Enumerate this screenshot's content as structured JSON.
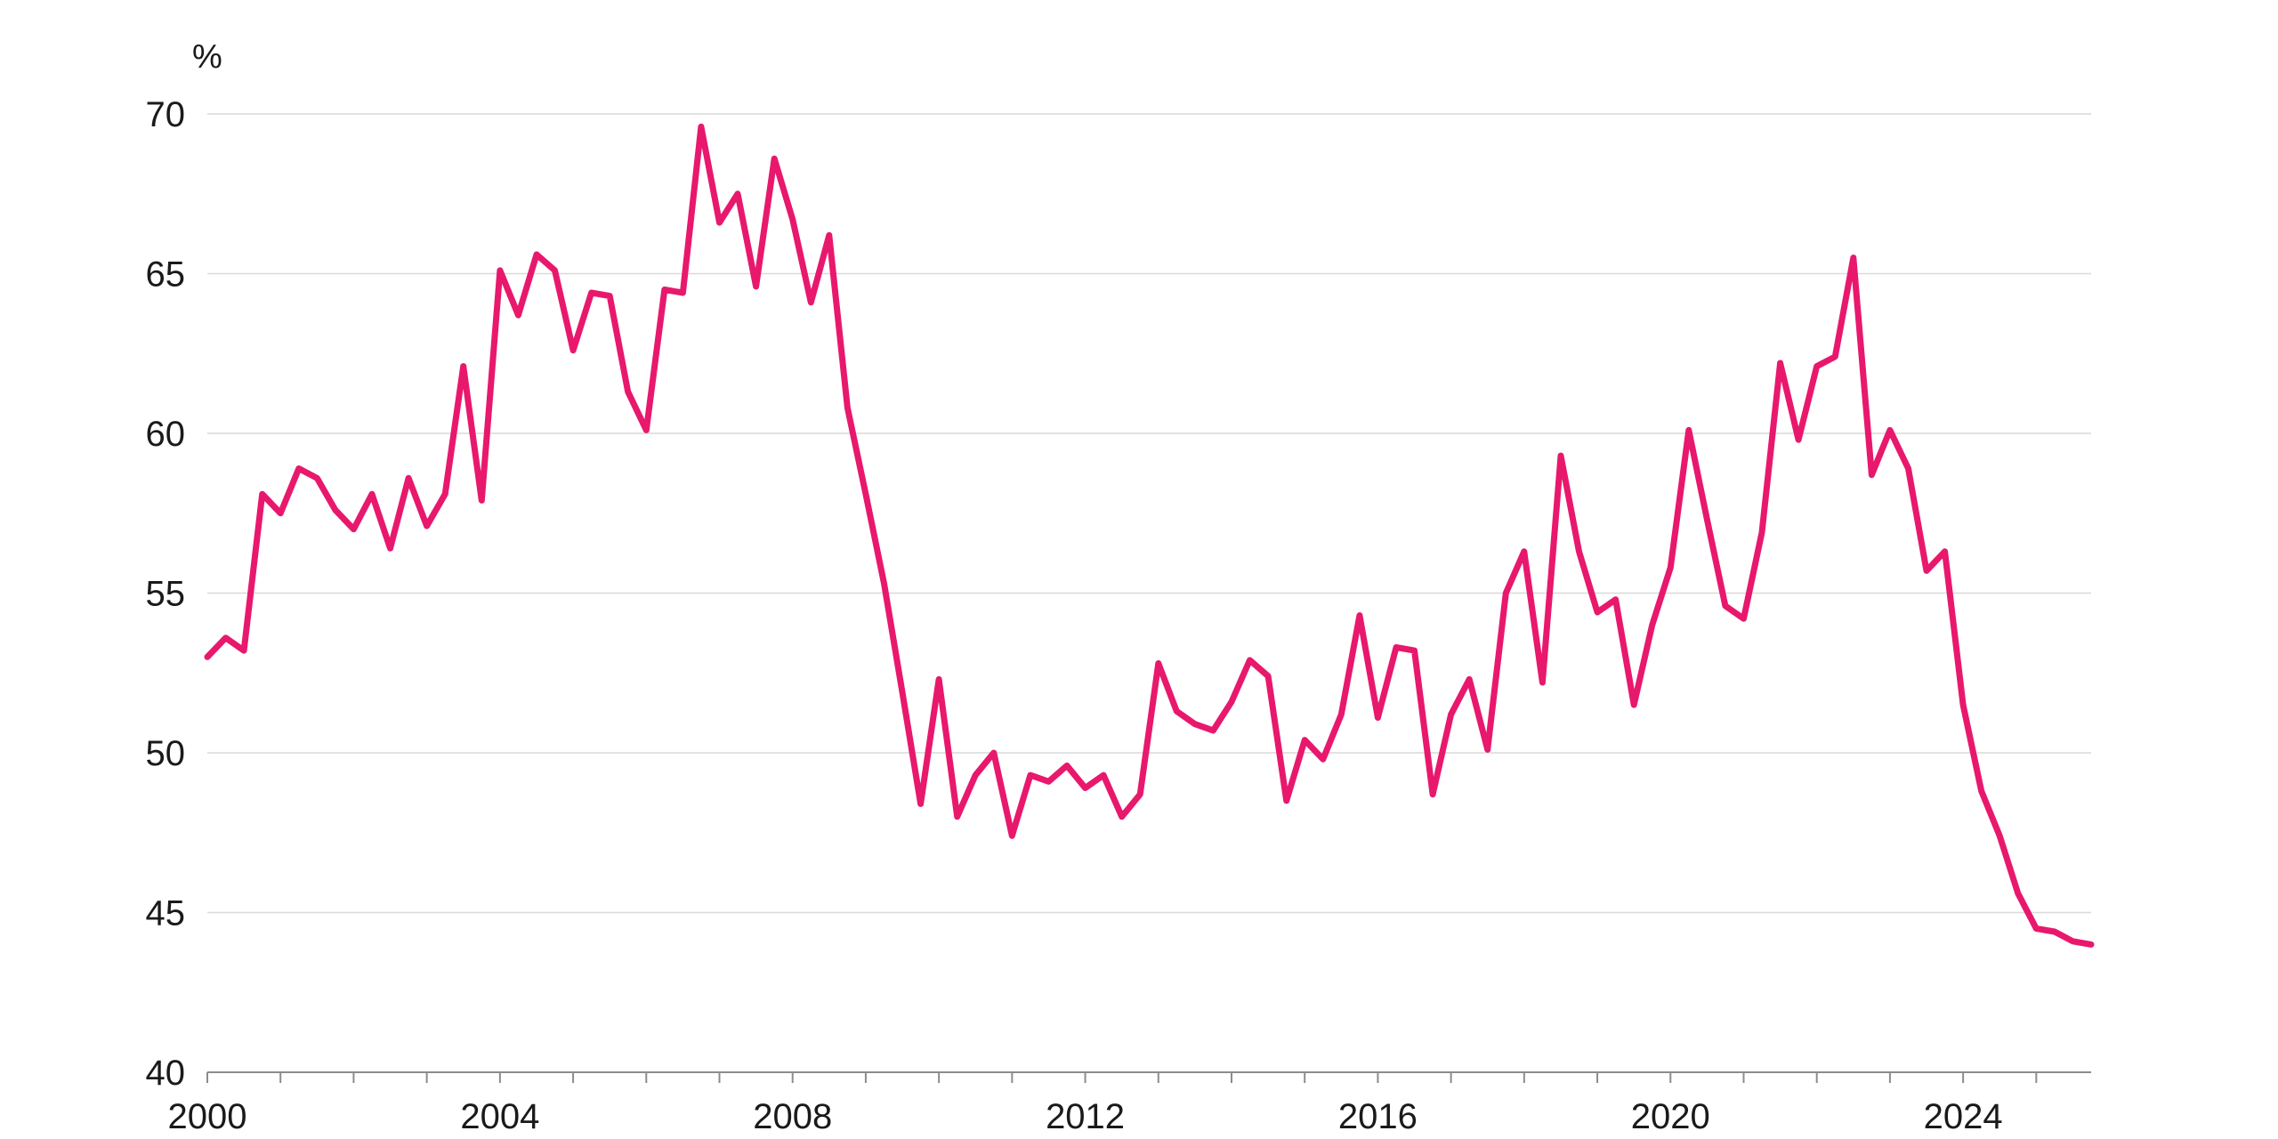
{
  "chart_data": {
    "type": "line",
    "title": "",
    "xlabel": "",
    "ylabel": "%",
    "ylim": [
      40,
      70
    ],
    "yticks": [
      40,
      45,
      50,
      55,
      60,
      65,
      70
    ],
    "xlim": [
      2000,
      2025.75
    ],
    "xticks": [
      2000,
      2004,
      2008,
      2012,
      2016,
      2020,
      2024
    ],
    "grid": true,
    "colors": {
      "line": "#e8186d"
    },
    "series": [
      {
        "x": [
          2000.0,
          2000.25,
          2000.5,
          2000.75,
          2001.0,
          2001.25,
          2001.5,
          2001.75,
          2002.0,
          2002.25,
          2002.5,
          2002.75,
          2003.0,
          2003.25,
          2003.5,
          2003.75,
          2004.0,
          2004.25,
          2004.5,
          2004.75,
          2005.0,
          2005.25,
          2005.5,
          2005.75,
          2006.0,
          2006.25,
          2006.5,
          2006.75,
          2007.0,
          2007.25,
          2007.5,
          2007.75,
          2008.0,
          2008.25,
          2008.5,
          2008.75,
          2009.0,
          2009.25,
          2009.5,
          2009.75,
          2010.0,
          2010.25,
          2010.5,
          2010.75,
          2011.0,
          2011.25,
          2011.5,
          2011.75,
          2012.0,
          2012.25,
          2012.5,
          2012.75,
          2013.0,
          2013.25,
          2013.5,
          2013.75,
          2014.0,
          2014.25,
          2014.5,
          2014.75,
          2015.0,
          2015.25,
          2015.5,
          2015.75,
          2016.0,
          2016.25,
          2016.5,
          2016.75,
          2017.0,
          2017.25,
          2017.5,
          2017.75,
          2018.0,
          2018.25,
          2018.5,
          2018.75,
          2019.0,
          2019.25,
          2019.5,
          2019.75,
          2020.0,
          2020.25,
          2020.5,
          2020.75,
          2021.0,
          2021.25,
          2021.5,
          2021.75,
          2022.0,
          2022.25,
          2022.5,
          2022.75,
          2023.0,
          2023.25,
          2023.5,
          2023.75,
          2024.0,
          2024.25,
          2024.5,
          2024.75,
          2025.0,
          2025.25,
          2025.5,
          2025.75
        ],
        "values": [
          53.0,
          53.6,
          53.2,
          58.1,
          57.5,
          58.9,
          58.6,
          57.6,
          57.0,
          58.1,
          56.4,
          58.6,
          57.1,
          58.1,
          62.1,
          57.9,
          65.1,
          63.7,
          65.6,
          65.1,
          62.6,
          64.4,
          64.3,
          61.3,
          60.1,
          64.5,
          64.4,
          69.6,
          66.6,
          67.5,
          64.6,
          68.6,
          66.7,
          64.1,
          66.2,
          60.8,
          58.1,
          55.3,
          51.9,
          48.4,
          52.3,
          48.0,
          49.3,
          50.0,
          47.4,
          49.3,
          49.1,
          49.6,
          48.9,
          49.3,
          48.0,
          48.7,
          52.8,
          51.3,
          50.9,
          50.7,
          51.6,
          52.9,
          52.4,
          48.5,
          50.4,
          49.8,
          51.2,
          54.3,
          51.1,
          53.3,
          53.2,
          48.7,
          51.2,
          52.3,
          50.1,
          55.0,
          56.3,
          52.2,
          59.3,
          56.3,
          54.4,
          54.8,
          51.5,
          54.0,
          55.8,
          60.1,
          57.3,
          54.6,
          54.2,
          56.9,
          62.2,
          59.8,
          62.1,
          62.4,
          65.5,
          58.7,
          60.1,
          58.9,
          55.7,
          56.3,
          51.5,
          48.8,
          47.4,
          45.6,
          44.5,
          44.4,
          44.1,
          44.0
        ]
      }
    ]
  }
}
